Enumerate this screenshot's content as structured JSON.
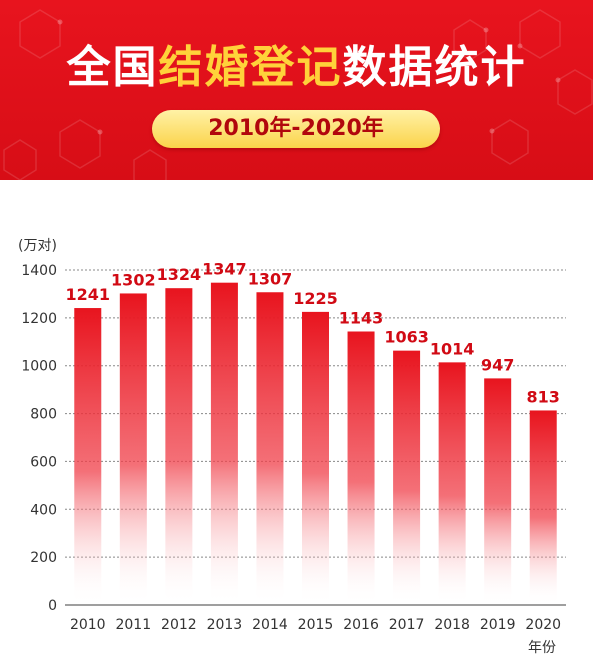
{
  "header": {
    "title_parts": [
      "全国",
      "结婚登记",
      "数据统计"
    ],
    "subtitle": "2010年-2020年"
  },
  "colors": {
    "header_red": "#e8141e",
    "title_highlight": "#ffd23a",
    "pill_yellow": "#fbd34a",
    "bar_red": "#e8141e",
    "value_label": "#d10a14"
  },
  "chart_data": {
    "type": "bar",
    "title": "全国结婚登记数据统计",
    "subtitle": "2010年-2020年",
    "y_unit": "(万对)",
    "x_unit": "年份",
    "categories": [
      "2010",
      "2011",
      "2012",
      "2013",
      "2014",
      "2015",
      "2016",
      "2017",
      "2018",
      "2019",
      "2020"
    ],
    "values": [
      1241,
      1302,
      1324,
      1347,
      1307,
      1225,
      1143,
      1063,
      1014,
      947,
      813
    ],
    "ylim": [
      0,
      1400
    ],
    "yticks": [
      0,
      200,
      400,
      600,
      800,
      1000,
      1200,
      1400
    ],
    "grid": true
  }
}
